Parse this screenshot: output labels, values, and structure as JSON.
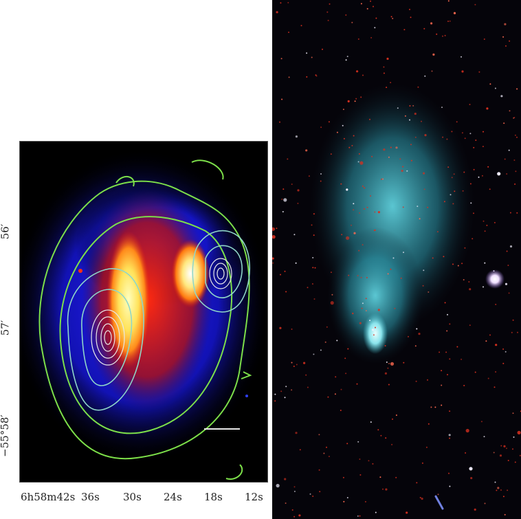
{
  "left_image": {
    "x_tick_labels": [
      "6h58m42s",
      "36s",
      "30s",
      "24s",
      "18s",
      "12s"
    ],
    "y_tick_labels": [
      "56′",
      "57′",
      "−55°58′"
    ],
    "contour_colors": {
      "outer": "#7de04a",
      "mid": "#8fd6c8",
      "inner": "#e8e8e8"
    },
    "colors": {
      "background": "#000000",
      "diffuse": "#1010d0",
      "core": "#ffe25a"
    }
  },
  "right_image": {
    "colors": {
      "background": "#05040a",
      "glow": "#3fb7c7",
      "stars": "#e8392a"
    }
  }
}
